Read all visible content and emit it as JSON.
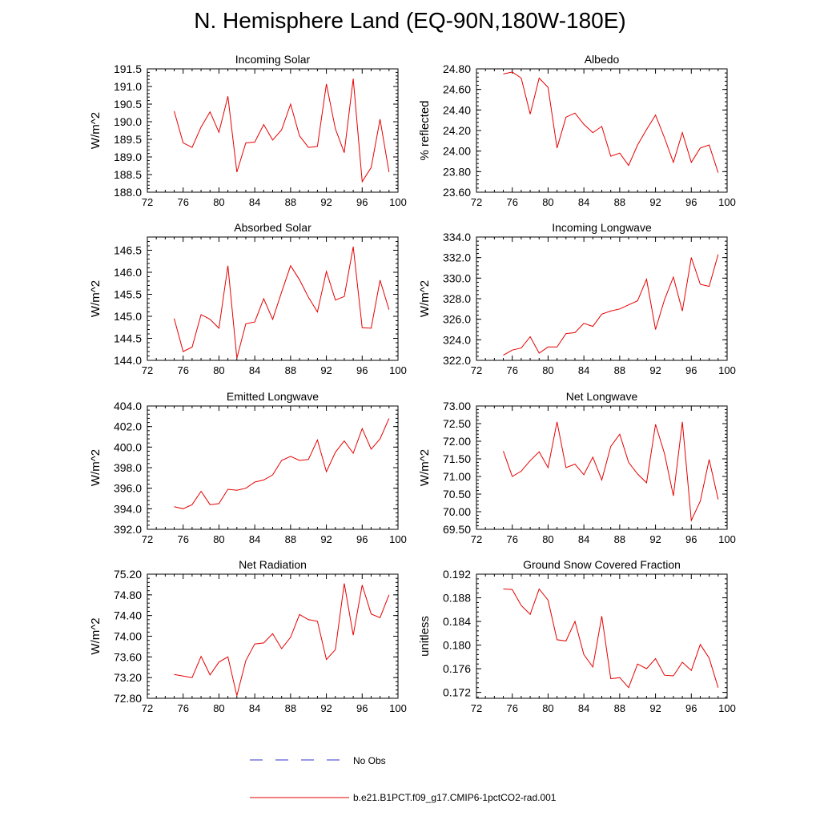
{
  "title": "N. Hemisphere Land (EQ-90N,180W-180E)",
  "legend": {
    "obs_label": "No Obs",
    "model_label": "b.e21.B1PCT.f09_g17.CMIP6-1pctCO2-rad.001",
    "obs_color": "#3333cc",
    "model_color": "#e60000"
  },
  "chart_data": [
    {
      "type": "line",
      "title": "Incoming Solar",
      "ylabel": "W/m^2",
      "xlim": [
        72,
        100
      ],
      "ylim": [
        188.0,
        191.5
      ],
      "xticks": [
        "72",
        "76",
        "80",
        "84",
        "88",
        "92",
        "96",
        "100"
      ],
      "yticks": [
        "188.0",
        "188.5",
        "189.0",
        "189.5",
        "190.0",
        "190.5",
        "191.0",
        "191.5"
      ],
      "x": [
        75,
        76,
        77,
        78,
        79,
        80,
        81,
        82,
        83,
        84,
        85,
        86,
        87,
        88,
        89,
        90,
        91,
        92,
        93,
        94,
        95,
        96,
        97,
        98,
        99
      ],
      "series": [
        {
          "values": [
            190.3,
            189.4,
            189.27,
            189.85,
            190.28,
            189.7,
            190.72,
            188.57,
            189.4,
            189.42,
            189.92,
            189.48,
            189.77,
            190.5,
            189.6,
            189.27,
            189.3,
            191.07,
            189.8,
            189.12,
            191.22,
            188.3,
            188.7,
            190.07,
            188.57
          ]
        }
      ]
    },
    {
      "type": "line",
      "title": "Albedo",
      "ylabel": "% reflected",
      "xlim": [
        72,
        100
      ],
      "ylim": [
        23.6,
        24.8
      ],
      "xticks": [
        "72",
        "76",
        "80",
        "84",
        "88",
        "92",
        "96",
        "100"
      ],
      "yticks": [
        "23.60",
        "23.80",
        "24.00",
        "24.20",
        "24.40",
        "24.60",
        "24.80"
      ],
      "x": [
        75,
        76,
        77,
        78,
        79,
        80,
        81,
        82,
        83,
        84,
        85,
        86,
        87,
        88,
        89,
        90,
        91,
        92,
        93,
        94,
        95,
        96,
        97,
        98,
        99
      ],
      "series": [
        {
          "values": [
            24.75,
            24.77,
            24.71,
            24.36,
            24.71,
            24.62,
            24.03,
            24.33,
            24.37,
            24.26,
            24.18,
            24.24,
            23.95,
            23.98,
            23.86,
            24.06,
            24.21,
            24.35,
            24.13,
            23.89,
            24.18,
            23.89,
            24.03,
            24.06,
            23.79
          ]
        }
      ]
    },
    {
      "type": "line",
      "title": "Absorbed Solar",
      "ylabel": "W/m^2",
      "xlim": [
        72,
        100
      ],
      "ylim": [
        144.0,
        146.8
      ],
      "xticks": [
        "72",
        "76",
        "80",
        "84",
        "88",
        "92",
        "96",
        "100"
      ],
      "yticks": [
        "144.0",
        "144.5",
        "145.0",
        "145.5",
        "146.0",
        "146.5"
      ],
      "x": [
        75,
        76,
        77,
        78,
        79,
        80,
        81,
        82,
        83,
        84,
        85,
        86,
        87,
        88,
        89,
        90,
        91,
        92,
        93,
        94,
        95,
        96,
        97,
        98,
        99
      ],
      "series": [
        {
          "values": [
            144.95,
            144.2,
            144.3,
            145.04,
            144.93,
            144.73,
            146.15,
            144.05,
            144.83,
            144.87,
            145.4,
            144.93,
            145.55,
            146.15,
            145.83,
            145.43,
            145.1,
            146.02,
            145.37,
            145.45,
            146.58,
            144.74,
            144.73,
            145.82,
            145.15
          ]
        }
      ]
    },
    {
      "type": "line",
      "title": "Incoming Longwave",
      "ylabel": "W/m^2",
      "xlim": [
        72,
        100
      ],
      "ylim": [
        322.0,
        334.0
      ],
      "xticks": [
        "72",
        "76",
        "80",
        "84",
        "88",
        "92",
        "96",
        "100"
      ],
      "yticks": [
        "322.0",
        "324.0",
        "326.0",
        "328.0",
        "330.0",
        "332.0",
        "334.0"
      ],
      "x": [
        75,
        76,
        77,
        78,
        79,
        80,
        81,
        82,
        83,
        84,
        85,
        86,
        87,
        88,
        89,
        90,
        91,
        92,
        93,
        94,
        95,
        96,
        97,
        98,
        99
      ],
      "series": [
        {
          "values": [
            322.5,
            323.0,
            323.2,
            324.3,
            322.7,
            323.3,
            323.3,
            324.6,
            324.7,
            325.6,
            325.3,
            326.5,
            326.8,
            327.0,
            327.4,
            327.8,
            329.9,
            325.0,
            327.9,
            330.1,
            326.8,
            332.0,
            329.4,
            329.2,
            332.3
          ]
        }
      ]
    },
    {
      "type": "line",
      "title": "Emitted Longwave",
      "ylabel": "W/m^2",
      "xlim": [
        72,
        100
      ],
      "ylim": [
        392.0,
        404.0
      ],
      "xticks": [
        "72",
        "76",
        "80",
        "84",
        "88",
        "92",
        "96",
        "100"
      ],
      "yticks": [
        "392.0",
        "394.0",
        "396.0",
        "398.0",
        "400.0",
        "402.0",
        "404.0"
      ],
      "x": [
        75,
        76,
        77,
        78,
        79,
        80,
        81,
        82,
        83,
        84,
        85,
        86,
        87,
        88,
        89,
        90,
        91,
        92,
        93,
        94,
        95,
        96,
        97,
        98,
        99
      ],
      "series": [
        {
          "values": [
            394.2,
            394.0,
            394.4,
            395.7,
            394.4,
            394.5,
            395.9,
            395.8,
            396.0,
            396.6,
            396.8,
            397.3,
            398.7,
            399.1,
            398.7,
            398.8,
            400.7,
            397.6,
            399.5,
            400.6,
            399.4,
            401.8,
            399.8,
            400.8,
            402.8
          ]
        }
      ]
    },
    {
      "type": "line",
      "title": "Net Longwave",
      "ylabel": "W/m^2",
      "xlim": [
        72,
        100
      ],
      "ylim": [
        69.5,
        73.0
      ],
      "xticks": [
        "72",
        "76",
        "80",
        "84",
        "88",
        "92",
        "96",
        "100"
      ],
      "yticks": [
        "69.50",
        "70.00",
        "70.50",
        "71.00",
        "71.50",
        "72.00",
        "72.50",
        "73.00"
      ],
      "x": [
        75,
        76,
        77,
        78,
        79,
        80,
        81,
        82,
        83,
        84,
        85,
        86,
        87,
        88,
        89,
        90,
        91,
        92,
        93,
        94,
        95,
        96,
        97,
        98,
        99
      ],
      "series": [
        {
          "values": [
            71.72,
            71.0,
            71.15,
            71.45,
            71.7,
            71.25,
            72.55,
            71.25,
            71.35,
            71.05,
            71.55,
            70.9,
            71.85,
            72.2,
            71.4,
            71.07,
            70.82,
            72.48,
            71.65,
            70.45,
            72.55,
            69.75,
            70.3,
            71.48,
            70.35
          ]
        }
      ]
    },
    {
      "type": "line",
      "title": "Net Radiation",
      "ylabel": "W/m^2",
      "xlim": [
        72,
        100
      ],
      "ylim": [
        72.8,
        75.2
      ],
      "xticks": [
        "72",
        "76",
        "80",
        "84",
        "88",
        "92",
        "96",
        "100"
      ],
      "yticks": [
        "72.80",
        "73.20",
        "73.60",
        "74.00",
        "74.40",
        "74.80",
        "75.20"
      ],
      "x": [
        75,
        76,
        77,
        78,
        79,
        80,
        81,
        82,
        83,
        84,
        85,
        86,
        87,
        88,
        89,
        90,
        91,
        92,
        93,
        94,
        95,
        96,
        97,
        98,
        99
      ],
      "series": [
        {
          "values": [
            73.26,
            73.23,
            73.2,
            73.61,
            73.25,
            73.5,
            73.6,
            72.85,
            73.53,
            73.85,
            73.87,
            74.05,
            73.76,
            73.98,
            74.42,
            74.32,
            74.29,
            73.55,
            73.74,
            75.02,
            74.02,
            74.99,
            74.43,
            74.36,
            74.8
          ]
        }
      ]
    },
    {
      "type": "line",
      "title": "Ground Snow Covered Fraction",
      "ylabel": "unitless",
      "xlim": [
        72,
        100
      ],
      "ylim": [
        0.171,
        0.192
      ],
      "xticks": [
        "72",
        "76",
        "80",
        "84",
        "88",
        "92",
        "96",
        "100"
      ],
      "yticks": [
        "0.172",
        "0.176",
        "0.180",
        "0.184",
        "0.188",
        "0.192"
      ],
      "x": [
        75,
        76,
        77,
        78,
        79,
        80,
        81,
        82,
        83,
        84,
        85,
        86,
        87,
        88,
        89,
        90,
        91,
        92,
        93,
        94,
        95,
        96,
        97,
        98,
        99
      ],
      "series": [
        {
          "values": [
            0.1895,
            0.1894,
            0.1867,
            0.1852,
            0.1895,
            0.1876,
            0.1809,
            0.1807,
            0.184,
            0.1784,
            0.1763,
            0.1849,
            0.1743,
            0.1745,
            0.1728,
            0.1768,
            0.176,
            0.1777,
            0.1749,
            0.1748,
            0.1771,
            0.1757,
            0.1801,
            0.1778,
            0.1728
          ]
        }
      ]
    }
  ]
}
